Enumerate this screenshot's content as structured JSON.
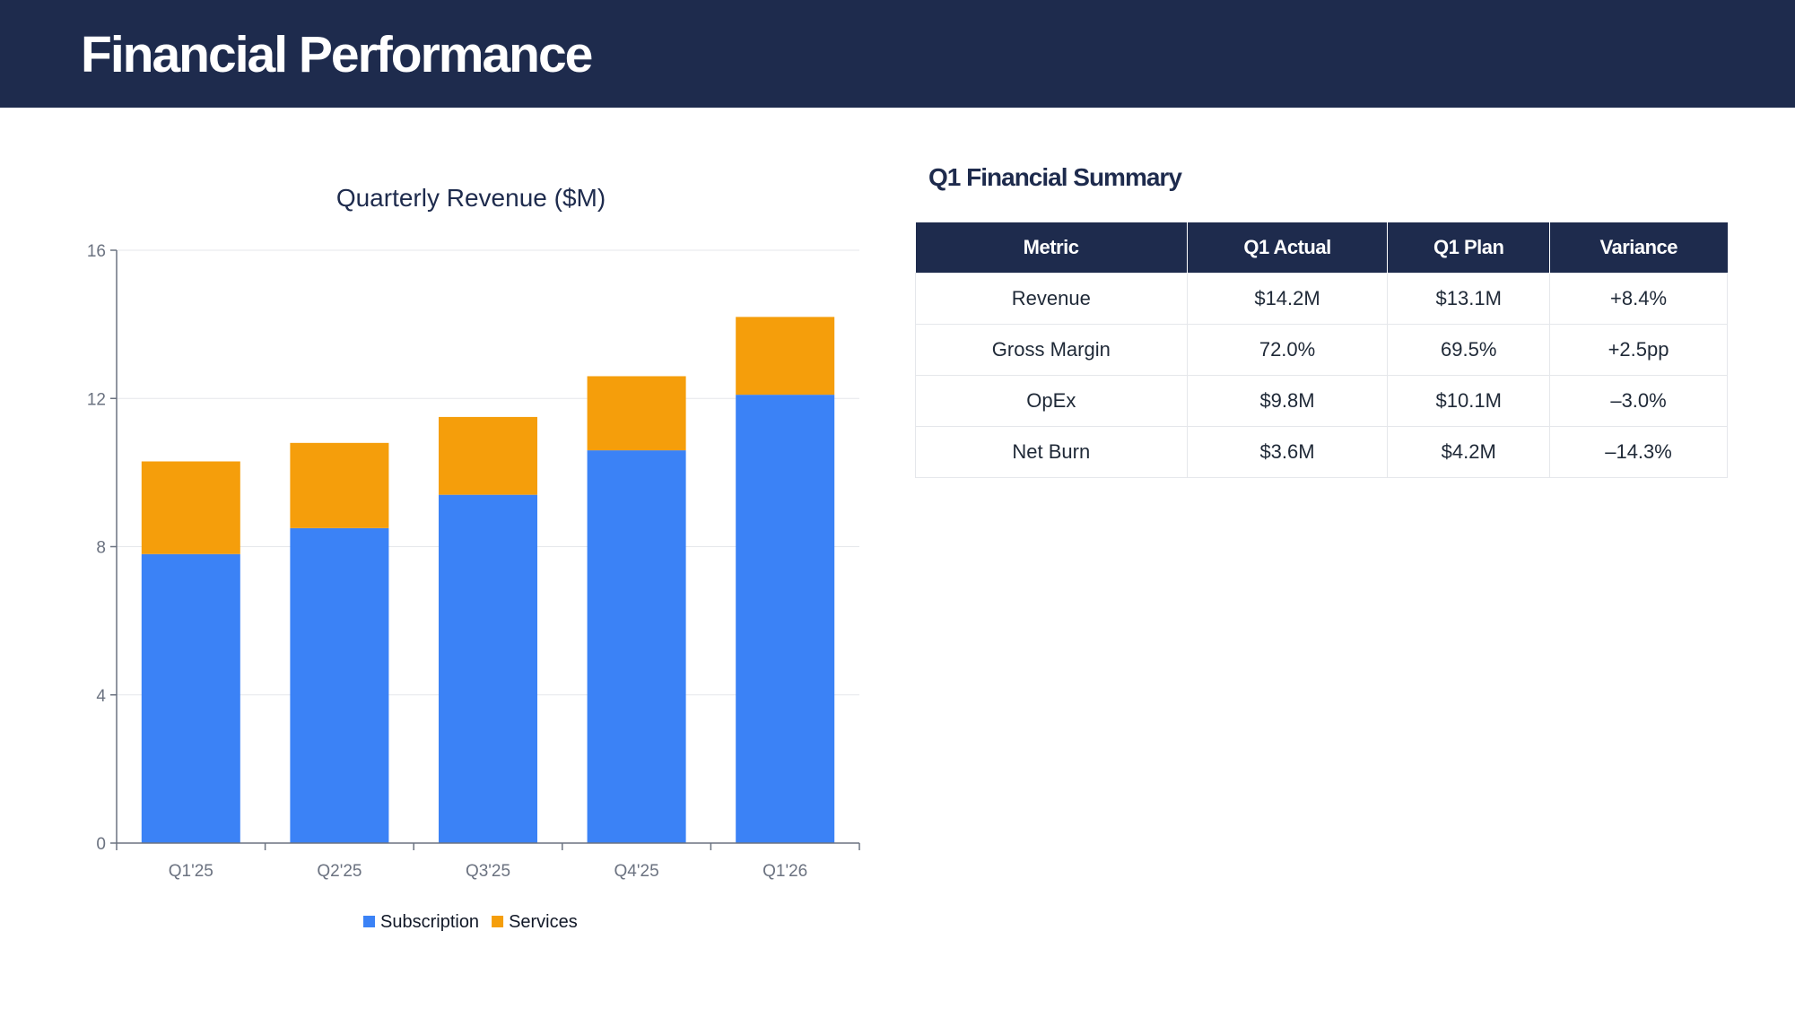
{
  "header": {
    "title": "Financial Performance"
  },
  "chart_data": {
    "type": "bar",
    "stacked": true,
    "title": "Quarterly Revenue ($M)",
    "categories": [
      "Q1'25",
      "Q2'25",
      "Q3'25",
      "Q4'25",
      "Q1'26"
    ],
    "series": [
      {
        "name": "Subscription",
        "values": [
          7.8,
          8.5,
          9.4,
          10.6,
          12.1
        ],
        "color": "#3b82f6"
      },
      {
        "name": "Services",
        "values": [
          2.5,
          2.3,
          2.1,
          2.0,
          2.1
        ],
        "color": "#f59e0b"
      }
    ],
    "ylim": [
      0,
      16
    ],
    "yticks": [
      0,
      4,
      8,
      12,
      16
    ],
    "grid": true,
    "legend": "bottom"
  },
  "summary": {
    "title": "Q1 Financial Summary",
    "columns": [
      "Metric",
      "Q1 Actual",
      "Q1 Plan",
      "Variance"
    ],
    "rows": [
      [
        "Revenue",
        "$14.2M",
        "$13.1M",
        "+8.4%"
      ],
      [
        "Gross Margin",
        "72.0%",
        "69.5%",
        "+2.5pp"
      ],
      [
        "OpEx",
        "$9.8M",
        "$10.1M",
        "–3.0%"
      ],
      [
        "Net Burn",
        "$3.6M",
        "$4.2M",
        "–14.3%"
      ]
    ]
  }
}
